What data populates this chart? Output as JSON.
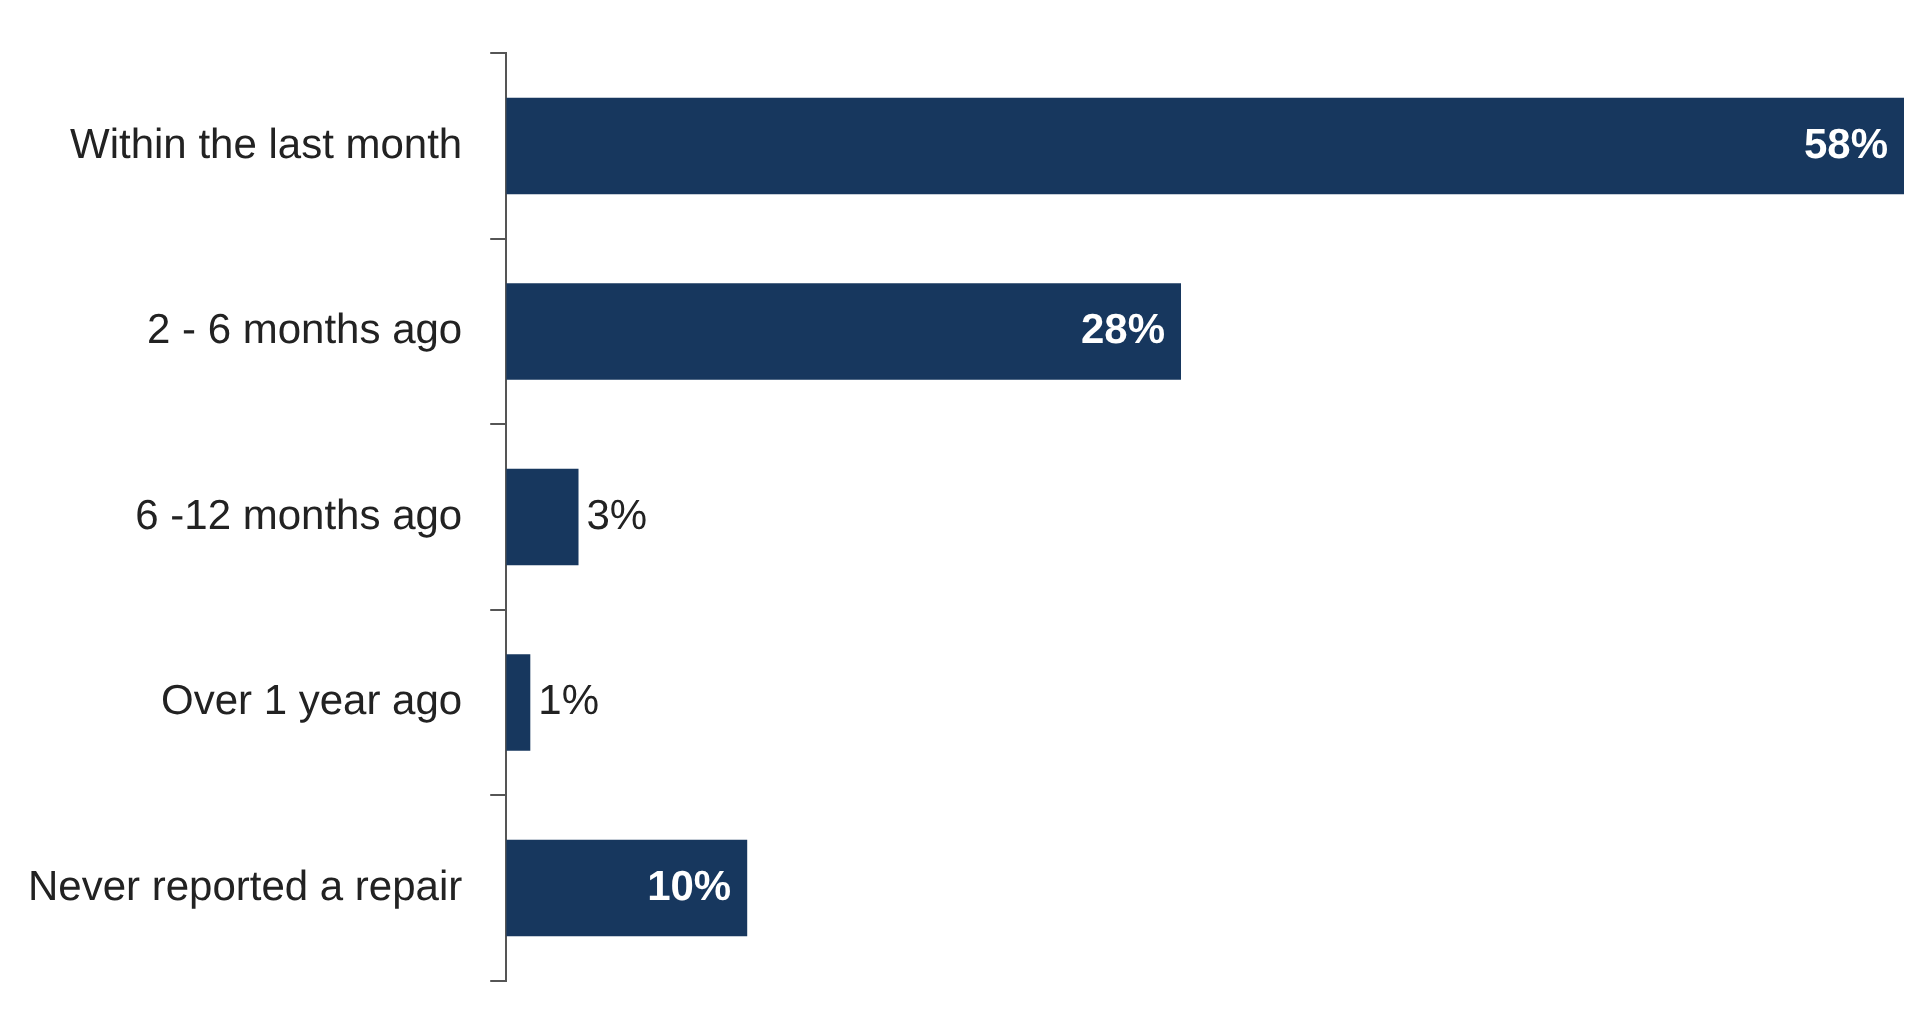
{
  "chart_data": {
    "type": "bar",
    "orientation": "horizontal",
    "categories": [
      "Within the last month",
      "2 - 6 months ago",
      "6 -12 months ago",
      "Over 1 year ago",
      "Never reported a repair"
    ],
    "values": [
      58,
      28,
      3,
      1,
      10
    ],
    "value_labels": [
      "58%",
      "28%",
      "3%",
      "1%",
      "10%"
    ],
    "color": "#17375e",
    "tick_labels": "y",
    "grid": false,
    "legend": false
  }
}
